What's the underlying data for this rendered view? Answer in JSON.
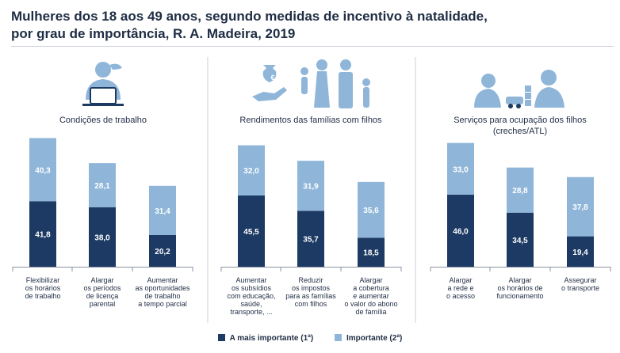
{
  "title_lines": [
    "Mulheres dos 18 aos 49 anos, segundo medidas de incentivo à natalidade,",
    "por grau de importância, R. A. Madeira, 2019"
  ],
  "colors": {
    "primary": "#1c3a63",
    "secondary": "#8fb6d9",
    "icon": "#8fb6d9",
    "divider": "#c9d0da",
    "text": "#1f2d44"
  },
  "legend": [
    {
      "label": "A mais importante (1ª)",
      "color": "#1c3a63"
    },
    {
      "label": "Importante (2ª)",
      "color": "#8fb6d9"
    }
  ],
  "chart_data": [
    {
      "type": "bar",
      "stacked": true,
      "title": "Condições de trabalho",
      "icon": "woman-laptop-icon",
      "categories": [
        [
          "Flexibilizar",
          "os horários",
          "de trabalho"
        ],
        [
          "Alargar",
          "os períodos",
          "de licença",
          "parental"
        ],
        [
          "Aumentar",
          "as oportunidades",
          "de trabalho",
          "a tempo parcial"
        ]
      ],
      "series": [
        {
          "name": "A mais importante (1ª)",
          "values": [
            41.8,
            38.0,
            20.2
          ],
          "labels": [
            "41,8",
            "38,0",
            "20,2"
          ]
        },
        {
          "name": "Importante (2ª)",
          "values": [
            40.3,
            28.1,
            31.4
          ],
          "labels": [
            "40,3",
            "28,1",
            "31,4"
          ]
        }
      ]
    },
    {
      "type": "bar",
      "stacked": true,
      "title": "Rendimentos das famílias com filhos",
      "icon": "family-money-icon",
      "categories": [
        [
          "Aumentar",
          "os subsídios",
          "com educação,",
          "saúde,",
          "transporte, ..."
        ],
        [
          "Reduzir",
          "os impostos",
          "para as famílias",
          "com filhos"
        ],
        [
          "Alargar",
          "a cobertura",
          "e aumentar",
          "o valor do abono",
          "de família"
        ]
      ],
      "series": [
        {
          "name": "A mais importante (1ª)",
          "values": [
            45.5,
            35.7,
            18.5
          ],
          "labels": [
            "45,5",
            "35,7",
            "18,5"
          ]
        },
        {
          "name": "Importante (2ª)",
          "values": [
            32.0,
            31.9,
            35.6
          ],
          "labels": [
            "32,0",
            "31,9",
            "35,6"
          ]
        }
      ]
    },
    {
      "type": "bar",
      "stacked": true,
      "title": "Serviços para ocupação dos filhos",
      "subtitle": "(creches/ATL)",
      "icon": "children-playing-icon",
      "categories": [
        [
          "Alargar",
          "a rede e",
          "o acesso"
        ],
        [
          "Alargar",
          "os horários de",
          "funcionamento"
        ],
        [
          "Assegurar",
          "o transporte"
        ]
      ],
      "series": [
        {
          "name": "A mais importante (1ª)",
          "values": [
            46.0,
            34.5,
            19.4
          ],
          "labels": [
            "46,0",
            "34,5",
            "19,4"
          ]
        },
        {
          "name": "Importante (2ª)",
          "values": [
            33.0,
            28.8,
            37.8
          ],
          "labels": [
            "33,0",
            "28,8",
            "37,8"
          ]
        }
      ]
    }
  ]
}
